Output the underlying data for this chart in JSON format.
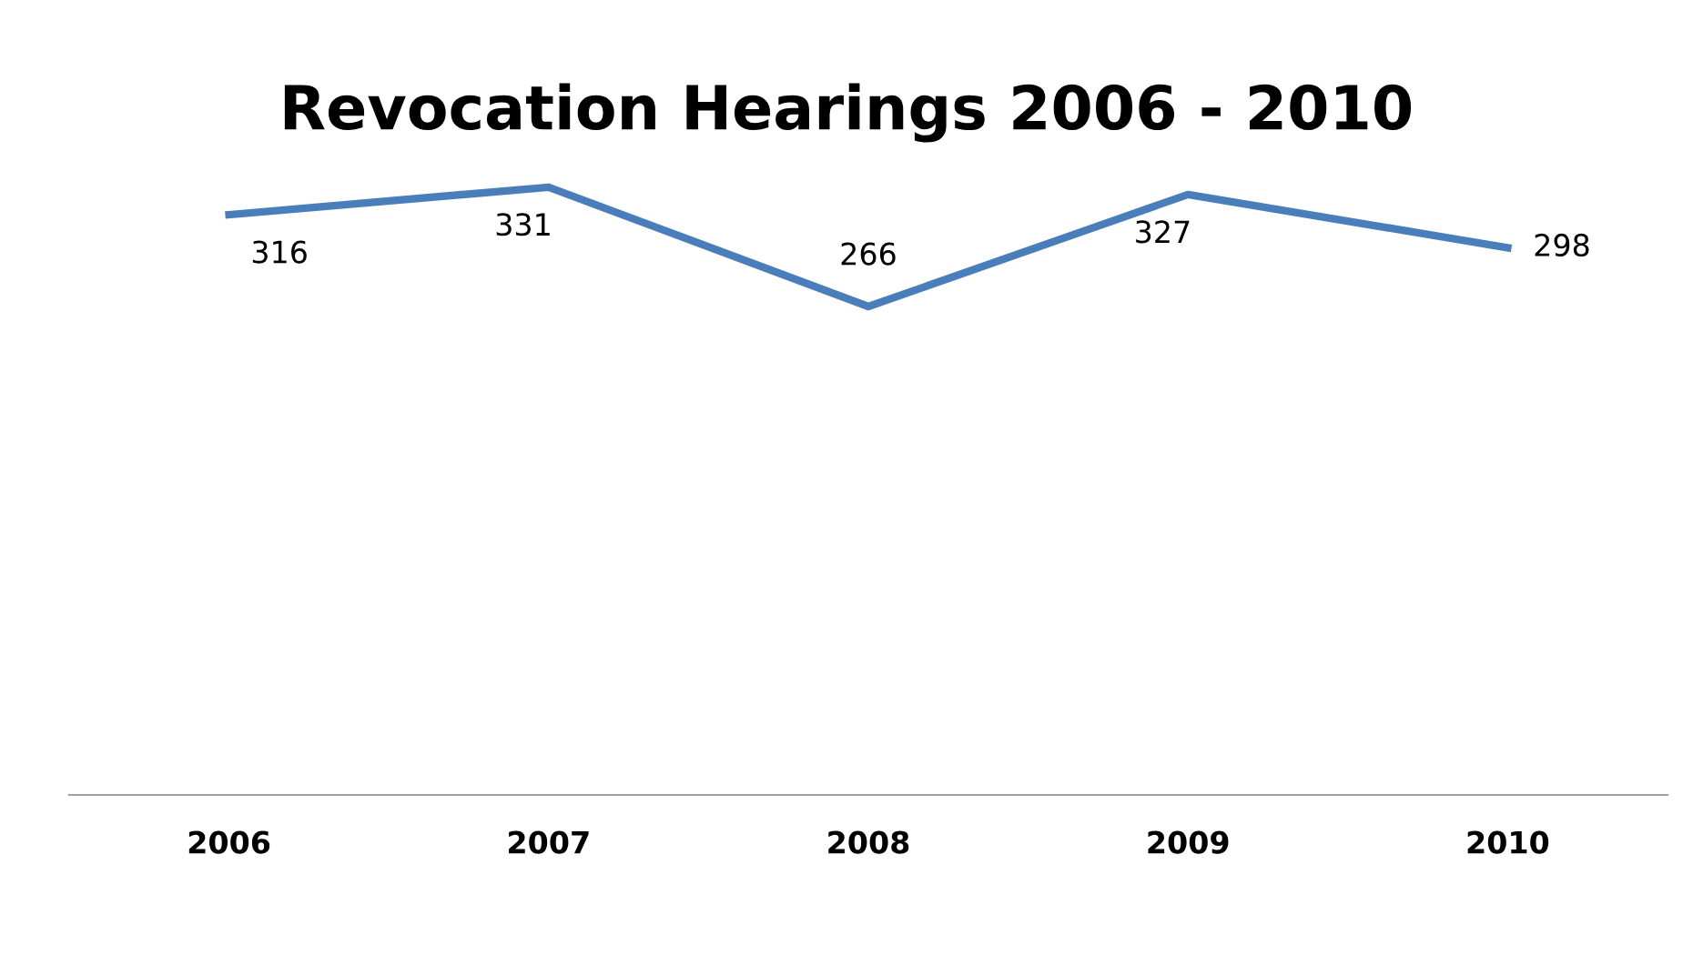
{
  "chart_data": {
    "type": "line",
    "title": "Revocation Hearings 2006 - 2010",
    "categories": [
      "2006",
      "2007",
      "2008",
      "2009",
      "2010"
    ],
    "series": [
      {
        "color": "#4a7ebb",
        "values": [
          316,
          331,
          266,
          327,
          298
        ]
      }
    ],
    "data_labels": true,
    "grid": false,
    "legend": false,
    "marker": "none",
    "line_style": "solid",
    "tick_labels": "x"
  }
}
